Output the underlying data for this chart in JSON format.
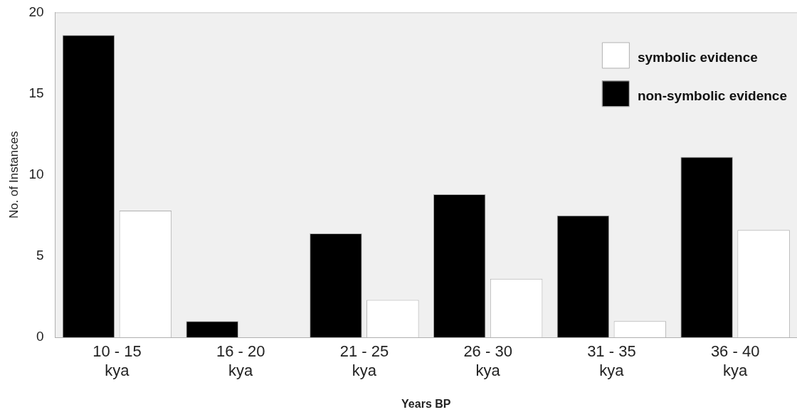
{
  "chart_data": {
    "type": "bar",
    "xlabel": "Years BP",
    "ylabel": "No. of Instances",
    "categories": [
      "10 - 15 kya",
      "16 - 20 kya",
      "21 - 25 kya",
      "26 - 30 kya",
      "31 - 35 kya",
      "36 - 40 kya"
    ],
    "series": [
      {
        "name": "non-symbolic evidence",
        "color": "#000000",
        "values": [
          18.6,
          1,
          6.4,
          8.8,
          7.5,
          11.1
        ]
      },
      {
        "name": "symbolic evidence",
        "color": "#ffffff",
        "values": [
          7.8,
          0,
          2.3,
          3.6,
          1,
          6.6
        ]
      }
    ],
    "ylim": [
      0,
      20
    ],
    "yticks": [
      0,
      5,
      10,
      15,
      20
    ],
    "grid": false,
    "legend": "top right"
  }
}
